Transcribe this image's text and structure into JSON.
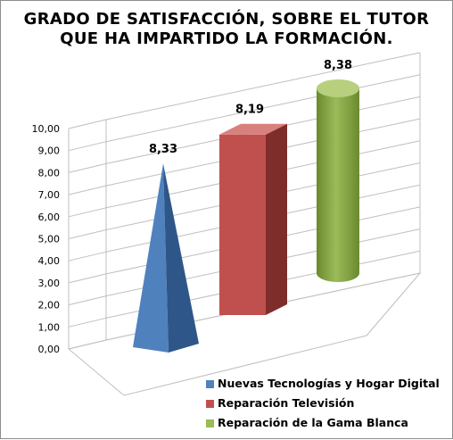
{
  "chart_data": {
    "type": "bar",
    "title_lines": [
      "GRADO DE SATISFACCIÓN, SOBRE EL TUTOR",
      "QUE HA IMPARTIDO LA FORMACIÓN."
    ],
    "y_ticks": [
      "0,00",
      "1,00",
      "2,00",
      "3,00",
      "4,00",
      "5,00",
      "6,00",
      "7,00",
      "8,00",
      "9,00",
      "10,00"
    ],
    "ylim": [
      0,
      10
    ],
    "grid": true,
    "legend_position": "bottom-right",
    "series": [
      {
        "name": "Nuevas Tecnologías y Hogar Digital",
        "value": 8.33,
        "label": "8,33",
        "shape": "pyramid",
        "color": "#4f81bd",
        "color_dark": "#2f5689"
      },
      {
        "name": "Reparación Televisión",
        "value": 8.19,
        "label": "8,19",
        "shape": "box",
        "color": "#c0504d",
        "color_dark": "#7f2d2b"
      },
      {
        "name": "Reparación de la Gama Blanca",
        "value": 8.38,
        "label": "8,38",
        "shape": "cylinder",
        "color": "#9bbb59",
        "color_dark": "#6b8a2e"
      }
    ]
  }
}
